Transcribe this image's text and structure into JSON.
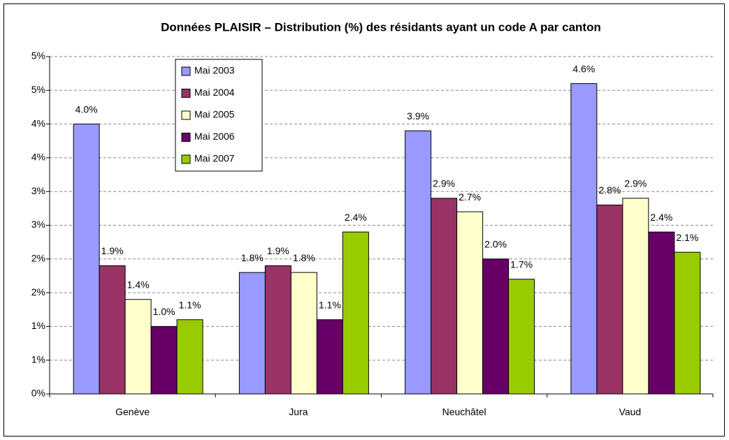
{
  "chart_data": {
    "type": "bar",
    "title": "Données PLAISIR – Distribution (%) des résidants ayant un code A par canton",
    "categories": [
      "Genève",
      "Jura",
      "Neuchâtel",
      "Vaud"
    ],
    "series": [
      {
        "name": "Mai 2003",
        "color": "#9999ff",
        "values": [
          4.0,
          1.8,
          3.9,
          4.6
        ],
        "value_labels": [
          "4.0%",
          "1.8%",
          "3.9%",
          "4.6%"
        ]
      },
      {
        "name": "Mai 2004",
        "color": "#993366",
        "values": [
          1.9,
          1.9,
          2.9,
          2.8
        ],
        "value_labels": [
          "1.9%",
          "1.9%",
          "2.9%",
          "2.8%"
        ]
      },
      {
        "name": "Mai 2005",
        "color": "#ffffcc",
        "values": [
          1.4,
          1.8,
          2.7,
          2.9
        ],
        "value_labels": [
          "1.4%",
          "1.8%",
          "2.7%",
          "2.9%"
        ]
      },
      {
        "name": "Mai 2006",
        "color": "#660066",
        "values": [
          1.0,
          1.1,
          2.0,
          2.4
        ],
        "value_labels": [
          "1.0%",
          "1.1%",
          "2.0%",
          "2.4%"
        ]
      },
      {
        "name": "Mai 2007",
        "color": "#99cc00",
        "values": [
          1.1,
          2.4,
          1.7,
          2.1
        ],
        "value_labels": [
          "1.1%",
          "2.4%",
          "1.7%",
          "2.1%"
        ]
      }
    ],
    "ylim": [
      0,
      5
    ],
    "yticks": [
      {
        "value": 0,
        "label": "0%"
      },
      {
        "value": 0.5,
        "label": "1%"
      },
      {
        "value": 1,
        "label": "1%"
      },
      {
        "value": 1.5,
        "label": "2%"
      },
      {
        "value": 2,
        "label": "2%"
      },
      {
        "value": 2.5,
        "label": "3%"
      },
      {
        "value": 3,
        "label": "3%"
      },
      {
        "value": 3.5,
        "label": "4%"
      },
      {
        "value": 4,
        "label": "4%"
      },
      {
        "value": 4.5,
        "label": "5%"
      },
      {
        "value": 5,
        "label": "5%"
      }
    ],
    "grid": true,
    "legend": "upper-left"
  }
}
